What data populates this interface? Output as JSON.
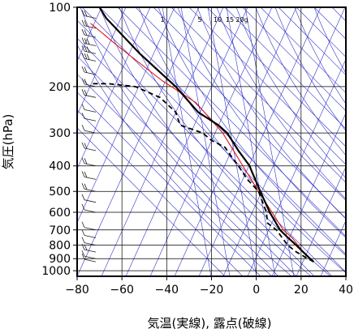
{
  "chart_data": {
    "type": "line",
    "title": "",
    "xlabel": "気温(実線), 露点(破線)",
    "ylabel": "気圧(hPa)",
    "xlim": [
      -80,
      40
    ],
    "ylim": [
      1050,
      100
    ],
    "y_scale": "log",
    "grid": true,
    "x_ticks": [
      -80,
      -60,
      -40,
      -20,
      0,
      20,
      40
    ],
    "x_tick_labels": [
      "−80",
      "−60",
      "−40",
      "−20",
      "0",
      "20",
      "40"
    ],
    "y_ticks": [
      100,
      200,
      300,
      400,
      500,
      600,
      700,
      800,
      900,
      1000
    ],
    "y_tick_labels": [
      "100",
      "200",
      "300",
      "400",
      "500",
      "600",
      "700",
      "800",
      "900",
      "1000"
    ],
    "mixing_ratio_labels": [
      "1",
      "5",
      "10",
      "15",
      "20g"
    ],
    "mixing_ratio_values": [
      1,
      5,
      10,
      15,
      20
    ],
    "colors": {
      "temperature": "#000000",
      "dewpoint": "#000000",
      "parcel": "#dd0000",
      "background_lines": "#3333cc",
      "grid": "#000000",
      "wind": "#222222"
    },
    "series": [
      {
        "name": "",
        "line_style": "solid",
        "x": [
          25.6,
          24.0,
          21.0,
          17.8,
          14.2,
          10.6,
          6.0,
          1.8,
          -2.0,
          -3.0,
          -8.0,
          -13.0,
          -17.0,
          -26.0,
          -36.0,
          -52.0,
          -67.0,
          -68.5,
          -70.0
        ],
        "y": [
          925,
          900,
          850,
          800,
          750,
          700,
          600,
          500,
          420,
          400,
          350,
          300,
          280,
          250,
          200,
          150,
          110,
          105,
          100
        ]
      },
      {
        "name": "",
        "line_style": "dashed",
        "x": [
          25.6,
          23.0,
          18.0,
          14.0,
          9.0,
          5.0,
          4.5,
          1.0,
          -4.0,
          -8.0,
          -10.0,
          -14.0,
          -20.0,
          -24.0,
          -34.0,
          -36.0,
          -43.0,
          -54.0,
          -66.0,
          -73.0
        ],
        "y": [
          925,
          900,
          850,
          800,
          700,
          660,
          600,
          500,
          450,
          400,
          380,
          340,
          320,
          300,
          280,
          250,
          220,
          200,
          195,
          195
        ]
      },
      {
        "name": "",
        "line_style": "solid",
        "x": [
          25.6,
          21.0,
          16.0,
          12.0,
          7.0,
          1.0,
          -6.0,
          -15.0,
          -27.0,
          -42.0,
          -62.0,
          -74.0
        ],
        "y": [
          925,
          850,
          750,
          700,
          600,
          500,
          400,
          300,
          230,
          190,
          140,
          115
        ]
      }
    ],
    "wind_barbs": [
      {
        "p": 925,
        "speed": 10
      },
      {
        "p": 900,
        "speed": 10
      },
      {
        "p": 850,
        "speed": 15
      },
      {
        "p": 800,
        "speed": 10
      },
      {
        "p": 750,
        "speed": 10
      },
      {
        "p": 700,
        "speed": 5
      },
      {
        "p": 600,
        "speed": 10
      },
      {
        "p": 550,
        "speed": 10
      },
      {
        "p": 500,
        "speed": 15
      },
      {
        "p": 450,
        "speed": 20
      },
      {
        "p": 400,
        "speed": 15
      },
      {
        "p": 350,
        "speed": 15
      },
      {
        "p": 300,
        "speed": 10
      },
      {
        "p": 270,
        "speed": 10
      },
      {
        "p": 250,
        "speed": 10
      },
      {
        "p": 220,
        "speed": 15
      },
      {
        "p": 200,
        "speed": 20
      },
      {
        "p": 180,
        "speed": 20
      },
      {
        "p": 160,
        "speed": 25
      },
      {
        "p": 150,
        "speed": 25
      },
      {
        "p": 140,
        "speed": 25
      },
      {
        "p": 130,
        "speed": 20
      },
      {
        "p": 120,
        "speed": 20
      },
      {
        "p": 110,
        "speed": 15
      }
    ]
  }
}
